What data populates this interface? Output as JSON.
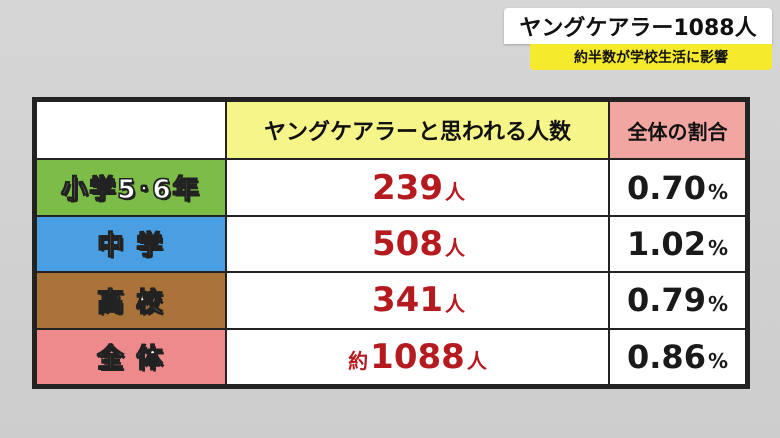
{
  "caption": {
    "title": "ヤングケアラー1088人",
    "subtitle": "約半数が学校生活に影響"
  },
  "table": {
    "header": {
      "count_label": "ヤングケアラーと思われる人数",
      "ratio_label": "全体の割合"
    },
    "rows": [
      {
        "label": "小学5･6年",
        "count_prefix": "",
        "count": "239",
        "count_unit": "人",
        "ratio": "0.70",
        "ratio_unit": "%"
      },
      {
        "label": "中 学",
        "count_prefix": "",
        "count": "508",
        "count_unit": "人",
        "ratio": "1.02",
        "ratio_unit": "%"
      },
      {
        "label": "高 校",
        "count_prefix": "",
        "count": "341",
        "count_unit": "人",
        "ratio": "0.79",
        "ratio_unit": "%"
      },
      {
        "label": "全 体",
        "count_prefix": "約",
        "count": "1088",
        "count_unit": "人",
        "ratio": "0.86",
        "ratio_unit": "%"
      }
    ]
  },
  "colors": {
    "row_label_backgrounds": [
      "#7cbd47",
      "#4a9fe3",
      "#a9733a",
      "#ef8a8c"
    ],
    "count_header_bg": "#f6f58a",
    "ratio_header_bg": "#f1a6a2",
    "count_text": "#b51a1f",
    "caption_sub_bg": "#f6ea2c"
  }
}
